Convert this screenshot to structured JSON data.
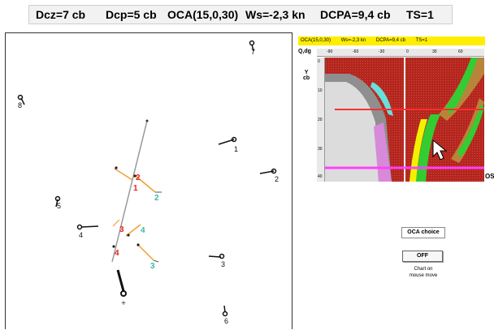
{
  "status": {
    "dcz": "Dcz=7 cb",
    "dcp": "Dcp=5 cb",
    "oca": "OCA(15,0,30)",
    "ws": "Ws=-2,3 kn",
    "dcpa": "DCPA=9,4 cb",
    "ts": "TS=1"
  },
  "plot": {
    "targets": [
      "1",
      "2",
      "3",
      "4",
      "5",
      "6",
      "7",
      "8"
    ],
    "own_path_labels_red": [
      "1",
      "2",
      "3",
      "4"
    ],
    "own_path_labels_green": [
      "2",
      "4",
      "3"
    ],
    "own_ship_marker": "+"
  },
  "chart": {
    "header": {
      "oca": "OCA(15,0,30)",
      "ws": "Ws=-2,3 kn",
      "dcpa": "DCPA=9,4 cb",
      "ts": "TS=1"
    },
    "corner_label": "Q,dg",
    "x_ticks": [
      "-90",
      "-60",
      "-30",
      "0",
      "30",
      "60"
    ],
    "y_label_1": "Y",
    "y_label_2": "cb",
    "y_ticks": [
      "0",
      "10",
      "20",
      "30",
      "40"
    ],
    "os_label": "OS"
  },
  "controls": {
    "oca_choice": "OCA choice",
    "off_button": "OFF",
    "chart_note_1": "Chart on",
    "chart_note_2": "mouse move"
  },
  "colors": {
    "heat_red": "#b3261e",
    "heat_gray": "#bdbdbd",
    "heat_light": "#dcdcdc",
    "heat_cyan": "#66e0dc",
    "heat_pink": "#d68ad8",
    "heat_green": "#33cc33",
    "heat_yellow": "#f2f200",
    "heat_brown": "#b8843a",
    "line_red": "#ff3030",
    "line_magenta": "#ff40ff"
  }
}
